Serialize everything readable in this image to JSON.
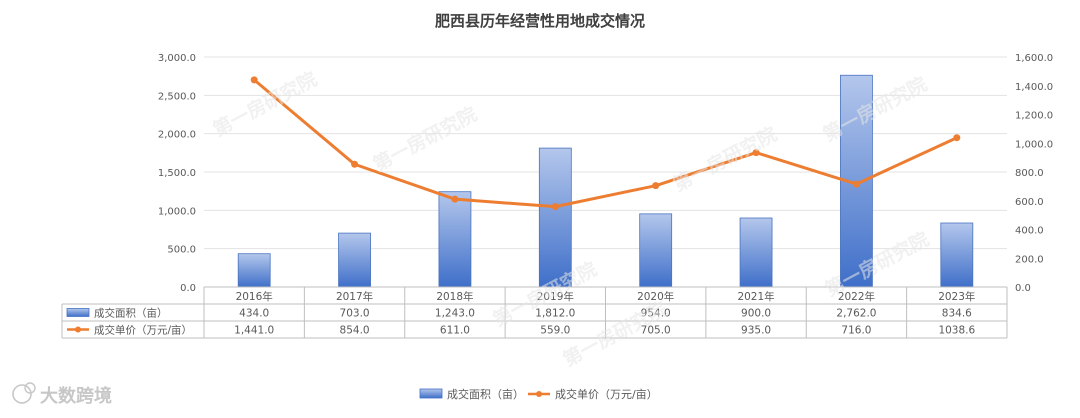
{
  "chart_data": {
    "type": "bar",
    "title": "肥西县历年经营性用地成交情况",
    "categories": [
      "2016年",
      "2017年",
      "2018年",
      "2019年",
      "2020年",
      "2021年",
      "2022年",
      "2023年"
    ],
    "series": [
      {
        "name": "成交面积（亩）",
        "type": "bar",
        "axis": "left",
        "values": [
          434.0,
          703.0,
          1243.0,
          1812.0,
          954.0,
          900.0,
          2762.0,
          834.6
        ],
        "table_labels": [
          "434.0",
          "703.0",
          "1,243.0",
          "1,812.0",
          "954.0",
          "900.0",
          "2,762.0",
          "834.6"
        ],
        "color": "#4472c4"
      },
      {
        "name": "成交单价（万元/亩）",
        "type": "line",
        "axis": "right",
        "values": [
          1441.0,
          854.0,
          611.0,
          559.0,
          705.0,
          935.0,
          716.0,
          1038.6
        ],
        "table_labels": [
          "1,441.0",
          "854.0",
          "611.0",
          "559.0",
          "705.0",
          "935.0",
          "716.0",
          "1038.6"
        ],
        "color": "#ed7d31"
      }
    ],
    "y_left": {
      "range": [
        0,
        3000
      ],
      "ticks": [
        "0.0",
        "500.0",
        "1,000.0",
        "1,500.0",
        "2,000.0",
        "2,500.0",
        "3,000.0"
      ]
    },
    "y_right": {
      "range": [
        0,
        1600
      ],
      "ticks": [
        "0.0",
        "200.0",
        "400.0",
        "600.0",
        "800.0",
        "1,000.0",
        "1,200.0",
        "1,400.0",
        "1,600.0"
      ]
    },
    "grid": true,
    "legend": "bottom-center",
    "data_table": true
  },
  "watermark": "第一房研究院",
  "logo_text": "大数跨境"
}
